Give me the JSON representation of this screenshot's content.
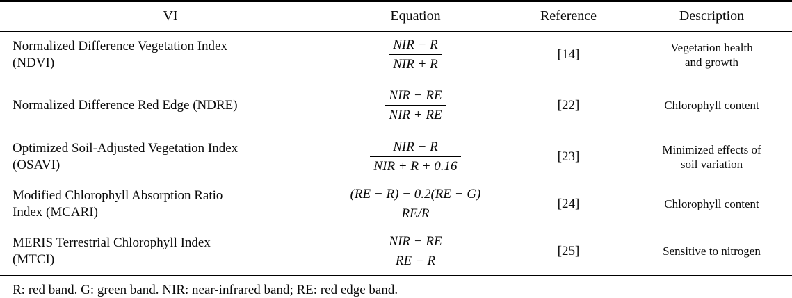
{
  "table": {
    "columns": [
      "VI",
      "Equation",
      "Reference",
      "Description"
    ],
    "rows": [
      {
        "vi": "Normalized Difference Vegetation Index\n(NDVI)",
        "eq_num": "NIR − R",
        "eq_den": "NIR + R",
        "reference": "[14]",
        "description": "Vegetation health\nand growth"
      },
      {
        "vi": "Normalized Difference Red Edge (NDRE)",
        "eq_num": "NIR − RE",
        "eq_den": "NIR + RE",
        "reference": "[22]",
        "description": "Chlorophyll content"
      },
      {
        "vi": "Optimized Soil-Adjusted Vegetation Index\n(OSAVI)",
        "eq_num": "NIR − R",
        "eq_den": "NIR + R + 0.16",
        "reference": "[23]",
        "description": "Minimized effects of\nsoil variation"
      },
      {
        "vi": "Modified Chlorophyll Absorption Ratio\nIndex (MCARI)",
        "eq_num": "(RE − R) − 0.2(RE − G)",
        "eq_den": "RE/R",
        "reference": "[24]",
        "description": "Chlorophyll content"
      },
      {
        "vi": "MERIS Terrestrial Chlorophyll Index\n(MTCI)",
        "eq_num": "NIR − RE",
        "eq_den": "RE − R",
        "reference": "[25]",
        "description": "Sensitive to nitrogen"
      }
    ],
    "footnote": "R: red band. G: green band. NIR: near-infrared band; RE: red edge band."
  },
  "colors": {
    "text": "#0a0a0a",
    "background": "#ffffff",
    "rule": "#000000"
  }
}
